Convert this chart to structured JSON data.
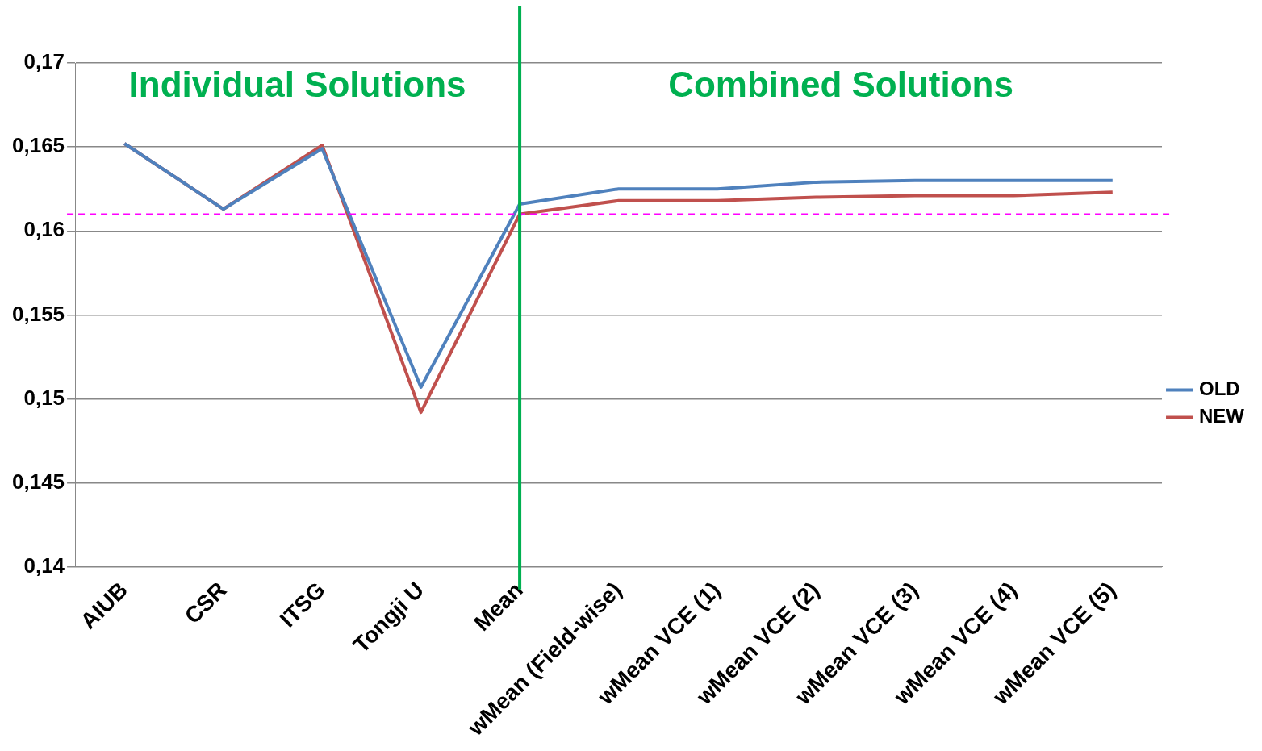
{
  "chart_data": {
    "type": "line",
    "categories": [
      "AIUB",
      "CSR",
      "ITSG",
      "Tongji U",
      "Mean",
      "wMean (Field-wise)",
      "wMean VCE (1)",
      "wMean VCE (2)",
      "wMean VCE (3)",
      "wMean VCE (4)",
      "wMean VCE (5)"
    ],
    "series": [
      {
        "name": "OLD",
        "color": "#4f81bd",
        "values": [
          0.1652,
          0.1613,
          0.1649,
          0.1507,
          0.1616,
          0.1625,
          0.1625,
          0.1629,
          0.163,
          0.163,
          0.163
        ]
      },
      {
        "name": "NEW",
        "color": "#c0504d",
        "values": [
          0.1652,
          0.1613,
          0.1651,
          0.1492,
          0.161,
          0.1618,
          0.1618,
          0.162,
          0.1621,
          0.1621,
          0.1623
        ]
      }
    ],
    "ylim": [
      0.14,
      0.17
    ],
    "yticks": [
      {
        "value": 0.14,
        "label": "0,14"
      },
      {
        "value": 0.145,
        "label": "0,145"
      },
      {
        "value": 0.15,
        "label": "0,15"
      },
      {
        "value": 0.155,
        "label": "0,155"
      },
      {
        "value": 0.16,
        "label": "0,16"
      },
      {
        "value": 0.165,
        "label": "0,165"
      },
      {
        "value": 0.17,
        "label": "0,17"
      }
    ],
    "ref_lines": [
      {
        "axis": "y",
        "value": 0.161,
        "color": "#ff00ff",
        "line_style": "dashed"
      },
      {
        "axis": "x",
        "value": "Mean",
        "color": "#00b050",
        "line_style": "solid"
      }
    ],
    "annotations": [
      "Individual Solutions",
      "Combined Solutions"
    ],
    "grid": "y",
    "legend": "right",
    "marker": "none",
    "line_style": "solid"
  }
}
